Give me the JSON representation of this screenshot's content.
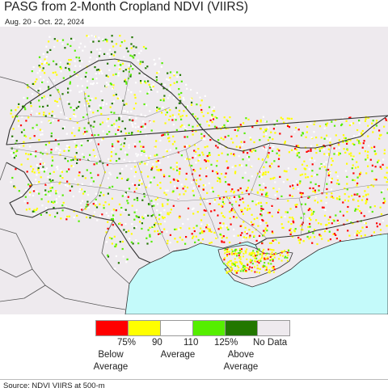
{
  "title": "PASG from 2-Month Cropland NDVI (VIIRS)",
  "subtitle": "Aug. 20 - Oct. 22, 2024",
  "source": "Source: NDVI VIIRS at 500-m",
  "legend": {
    "bins": [
      {
        "color": "#ff0000",
        "name": "below-75"
      },
      {
        "color": "#ffff00",
        "name": "75-90"
      },
      {
        "color": "#ffffff",
        "name": "90-110"
      },
      {
        "color": "#55ee00",
        "name": "110-125"
      },
      {
        "color": "#227700",
        "name": "above-125"
      },
      {
        "color": "#eeeaee",
        "name": "no-data"
      }
    ],
    "ticks": [
      "75%",
      "90",
      "110",
      "125%"
    ],
    "labels": {
      "below": "Below Average",
      "average": "Average",
      "above": "Above Average",
      "nodata": "No Data"
    }
  },
  "colors": {
    "water": "#c4fafa",
    "land": "#eeeaee",
    "border": "#333333",
    "oblast_border": "#888888"
  }
}
